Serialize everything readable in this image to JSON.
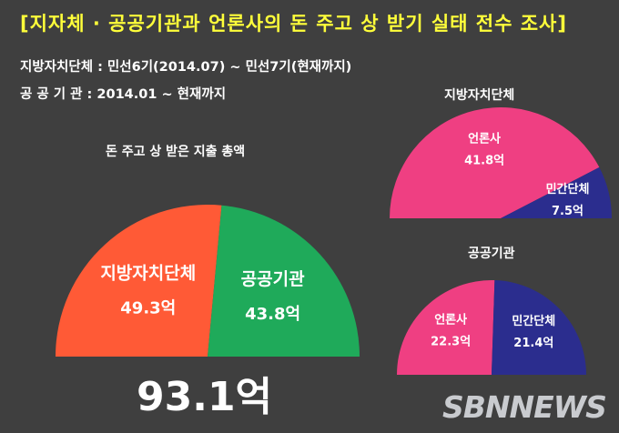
{
  "header": {
    "title": "[지자체 · 공공기관과 언론사의 돈 주고 상 받기 실태 전수 조사]",
    "period_local": "지방자치단체 : 민선6기(2014.07) ~ 민선7기(현재까지)",
    "period_public": "공 공  기 관 : 2014.01 ~ 현재까지"
  },
  "total_label": "93.1억",
  "watermark": "SBNNEWS",
  "colors": {
    "background": "#3f3f3f",
    "title": "#ffff3a",
    "local_gov": "#ff5a36",
    "public_inst": "#1faa5a",
    "media": "#ef3f82",
    "private_org": "#2b2d8e"
  },
  "chart_data": [
    {
      "type": "pie",
      "style": "semicircle",
      "title": "돈 주고 상 받은 지출 총액",
      "unit": "억",
      "slices": [
        {
          "label": "지방자치단체",
          "value": 49.3,
          "value_label": "49.3억",
          "color": "#ff5a36"
        },
        {
          "label": "공공기관",
          "value": 43.8,
          "value_label": "43.8억",
          "color": "#1faa5a"
        }
      ]
    },
    {
      "type": "pie",
      "style": "semicircle",
      "title": "지방자치단체",
      "unit": "억",
      "slices": [
        {
          "label": "언론사",
          "value": 41.8,
          "value_label": "41.8억",
          "color": "#ef3f82"
        },
        {
          "label": "민간단체",
          "value": 7.5,
          "value_label": "7.5억",
          "color": "#2b2d8e"
        }
      ]
    },
    {
      "type": "pie",
      "style": "semicircle",
      "title": "공공기관",
      "unit": "억",
      "slices": [
        {
          "label": "언론사",
          "value": 22.3,
          "value_label": "22.3억",
          "color": "#ef3f82"
        },
        {
          "label": "민간단체",
          "value": 21.4,
          "value_label": "21.4억",
          "color": "#2b2d8e"
        }
      ]
    }
  ]
}
